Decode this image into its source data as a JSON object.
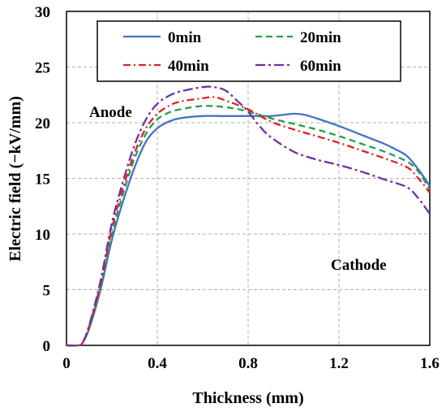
{
  "chart_data": {
    "type": "line",
    "title": "",
    "xlabel": "Thickness (mm)",
    "ylabel": "Electric field (−kV/mm)",
    "xlim": [
      0,
      1.6
    ],
    "ylim": [
      0,
      30
    ],
    "xticks": [
      0,
      0.4,
      0.8,
      1.2,
      1.6
    ],
    "xtick_labels": [
      "0",
      "0.4",
      "0.8",
      "1.2",
      "1.6"
    ],
    "yticks": [
      0,
      5,
      10,
      15,
      20,
      25,
      30
    ],
    "ytick_labels": [
      "0",
      "5",
      "10",
      "15",
      "20",
      "25",
      "30"
    ],
    "grid": true,
    "legend_position": "top",
    "annotations": [
      {
        "text": "Anode",
        "x": 0.11,
        "y": 20.7
      },
      {
        "text": "Cathode",
        "x": 1.15,
        "y": 7.0
      }
    ],
    "series": [
      {
        "name": "0min",
        "color": "#4472C4",
        "dash": "solid",
        "points": [
          [
            0,
            0
          ],
          [
            0.05,
            0
          ],
          [
            0.07,
            0.2
          ],
          [
            0.1,
            1.5
          ],
          [
            0.15,
            5
          ],
          [
            0.2,
            9.5
          ],
          [
            0.25,
            13
          ],
          [
            0.3,
            16
          ],
          [
            0.35,
            18.3
          ],
          [
            0.4,
            19.5
          ],
          [
            0.45,
            20.1
          ],
          [
            0.5,
            20.4
          ],
          [
            0.6,
            20.6
          ],
          [
            0.7,
            20.6
          ],
          [
            0.8,
            20.6
          ],
          [
            0.9,
            20.6
          ],
          [
            1.0,
            20.8
          ],
          [
            1.05,
            20.7
          ],
          [
            1.1,
            20.4
          ],
          [
            1.2,
            19.7
          ],
          [
            1.3,
            18.9
          ],
          [
            1.4,
            18.1
          ],
          [
            1.45,
            17.6
          ],
          [
            1.5,
            17.0
          ],
          [
            1.55,
            15.8
          ],
          [
            1.6,
            14.3
          ]
        ]
      },
      {
        "name": "20min",
        "color": "#22A04A",
        "dash": "8,5",
        "points": [
          [
            0,
            0
          ],
          [
            0.05,
            0
          ],
          [
            0.07,
            0.2
          ],
          [
            0.1,
            1.6
          ],
          [
            0.15,
            5.2
          ],
          [
            0.2,
            10
          ],
          [
            0.25,
            13.7
          ],
          [
            0.3,
            16.8
          ],
          [
            0.35,
            19
          ],
          [
            0.4,
            20.3
          ],
          [
            0.45,
            20.9
          ],
          [
            0.5,
            21.2
          ],
          [
            0.6,
            21.5
          ],
          [
            0.7,
            21.4
          ],
          [
            0.8,
            21
          ],
          [
            0.9,
            20.4
          ],
          [
            1.0,
            19.9
          ],
          [
            1.1,
            19.4
          ],
          [
            1.2,
            18.8
          ],
          [
            1.3,
            18.1
          ],
          [
            1.4,
            17.4
          ],
          [
            1.5,
            16.5
          ],
          [
            1.55,
            15.6
          ],
          [
            1.6,
            14.0
          ]
        ]
      },
      {
        "name": "40min",
        "color": "#E02020",
        "dash": "9,4,2,4",
        "points": [
          [
            0,
            0
          ],
          [
            0.05,
            0
          ],
          [
            0.07,
            0.2
          ],
          [
            0.1,
            1.7
          ],
          [
            0.15,
            5.5
          ],
          [
            0.2,
            10.5
          ],
          [
            0.25,
            14.2
          ],
          [
            0.3,
            17.3
          ],
          [
            0.35,
            19.5
          ],
          [
            0.4,
            20.8
          ],
          [
            0.45,
            21.5
          ],
          [
            0.5,
            21.9
          ],
          [
            0.6,
            22.2
          ],
          [
            0.65,
            22.3
          ],
          [
            0.7,
            22.0
          ],
          [
            0.8,
            21.2
          ],
          [
            0.9,
            20.1
          ],
          [
            1.0,
            19.4
          ],
          [
            1.1,
            18.8
          ],
          [
            1.2,
            18.2
          ],
          [
            1.3,
            17.5
          ],
          [
            1.4,
            16.8
          ],
          [
            1.5,
            16.0
          ],
          [
            1.55,
            15.0
          ],
          [
            1.6,
            13.7
          ]
        ]
      },
      {
        "name": "60min",
        "color": "#7030A0",
        "dash": "12,4,3,4",
        "points": [
          [
            0,
            0
          ],
          [
            0.05,
            0
          ],
          [
            0.07,
            0.2
          ],
          [
            0.1,
            1.8
          ],
          [
            0.15,
            5.8
          ],
          [
            0.2,
            11
          ],
          [
            0.25,
            14.8
          ],
          [
            0.3,
            18
          ],
          [
            0.35,
            20.3
          ],
          [
            0.4,
            21.7
          ],
          [
            0.45,
            22.4
          ],
          [
            0.5,
            22.8
          ],
          [
            0.6,
            23.2
          ],
          [
            0.65,
            23.2
          ],
          [
            0.7,
            22.9
          ],
          [
            0.75,
            22.0
          ],
          [
            0.8,
            21.0
          ],
          [
            0.85,
            19.7
          ],
          [
            0.9,
            18.7
          ],
          [
            1.0,
            17.4
          ],
          [
            1.1,
            16.7
          ],
          [
            1.2,
            16.2
          ],
          [
            1.3,
            15.6
          ],
          [
            1.4,
            14.9
          ],
          [
            1.5,
            14.2
          ],
          [
            1.55,
            13.2
          ],
          [
            1.6,
            11.8
          ]
        ]
      }
    ]
  }
}
